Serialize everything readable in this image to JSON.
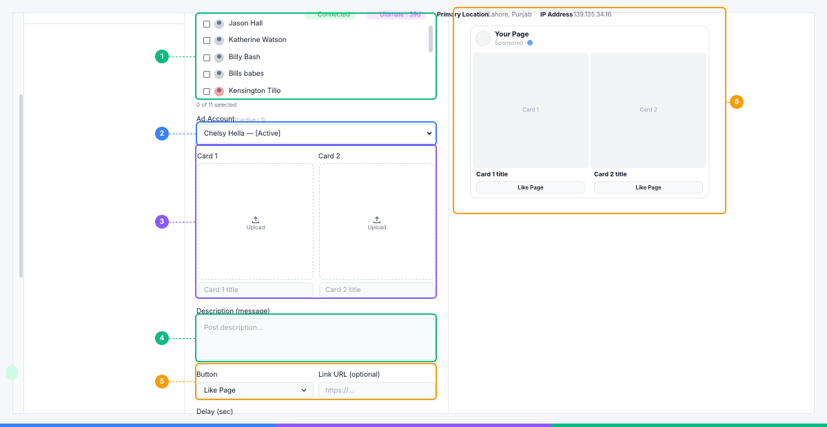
{
  "header": {
    "badges": [
      "Connected",
      "Ultimate · 39d"
    ],
    "location_label": "Primary Location",
    "location_value": "Lahore, Punjab",
    "ip_label": "IP Address",
    "ip_value": "139.135.34.16"
  },
  "users": {
    "names": [
      "Jason Hall",
      "Katherine Watson",
      "Billy Bash",
      "Bills babes",
      "Kensington Tillo"
    ],
    "selected": "0 of 11 selected"
  },
  "ad_account": {
    "label": "Ad Account",
    "sub": "(1 active / 1)",
    "value": "Chelsy Hella — [Active]"
  },
  "cards": [
    {
      "label": "Card 1",
      "upload": "Upload",
      "placeholder": "Card 1 title"
    },
    {
      "label": "Card 2",
      "upload": "Upload",
      "placeholder": "Card 2 title"
    }
  ],
  "description": {
    "label": "Description (message)",
    "placeholder": "Post description..."
  },
  "button": {
    "label": "Button",
    "value": "Like Page"
  },
  "link": {
    "label": "Link URL (optional)",
    "placeholder": "https://..."
  },
  "delay": {
    "label": "Delay (sec)"
  },
  "annotations": [
    "1",
    "2",
    "3",
    "4",
    "5",
    "6"
  ],
  "preview": {
    "page": "Your Page",
    "sponsored": "Sponsored ·",
    "cards": [
      {
        "image": "Card 1",
        "title": "Card 1 title",
        "button": "Like Page"
      },
      {
        "image": "Card 2",
        "title": "Card 2 title",
        "button": "Like Page"
      }
    ]
  }
}
